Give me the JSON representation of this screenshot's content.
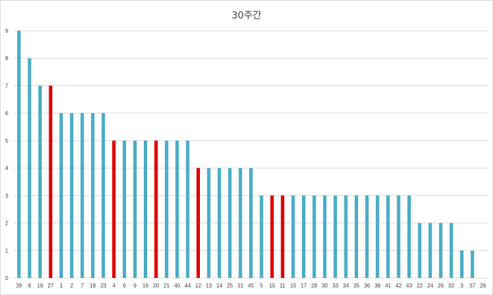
{
  "chart_data": {
    "type": "bar",
    "title": "30주간",
    "xlabel": "",
    "ylabel": "",
    "ylim": [
      0,
      9
    ],
    "yticks": [
      "0",
      "1",
      "2",
      "3",
      "4",
      "5",
      "6",
      "7",
      "8",
      "9"
    ],
    "grid": true,
    "legend": "none",
    "categories": [
      "39",
      "8",
      "19",
      "27",
      "1",
      "2",
      "7",
      "18",
      "23",
      "4",
      "6",
      "9",
      "16",
      "20",
      "21",
      "40",
      "44",
      "12",
      "13",
      "14",
      "25",
      "31",
      "45",
      "5",
      "10",
      "11",
      "15",
      "17",
      "28",
      "30",
      "33",
      "34",
      "35",
      "36",
      "38",
      "41",
      "42",
      "43",
      "22",
      "24",
      "26",
      "32",
      "3",
      "37",
      "29"
    ],
    "values": [
      9,
      8,
      7,
      7,
      6,
      6,
      6,
      6,
      6,
      5,
      5,
      5,
      5,
      5,
      5,
      5,
      5,
      4,
      4,
      4,
      4,
      4,
      4,
      3,
      3,
      3,
      3,
      3,
      3,
      3,
      3,
      3,
      3,
      3,
      3,
      3,
      3,
      3,
      2,
      2,
      2,
      2,
      1,
      1,
      0
    ],
    "highlight": [
      false,
      false,
      false,
      true,
      false,
      false,
      false,
      false,
      false,
      true,
      false,
      false,
      false,
      true,
      false,
      false,
      false,
      true,
      false,
      false,
      false,
      false,
      false,
      false,
      true,
      true,
      false,
      false,
      false,
      false,
      false,
      false,
      false,
      false,
      false,
      false,
      false,
      false,
      false,
      false,
      false,
      false,
      false,
      false,
      false
    ],
    "colors": {
      "bar": "#4bacc6",
      "highlight": "#e00000",
      "grid": "#d9d9d9",
      "text": "#404040"
    }
  }
}
